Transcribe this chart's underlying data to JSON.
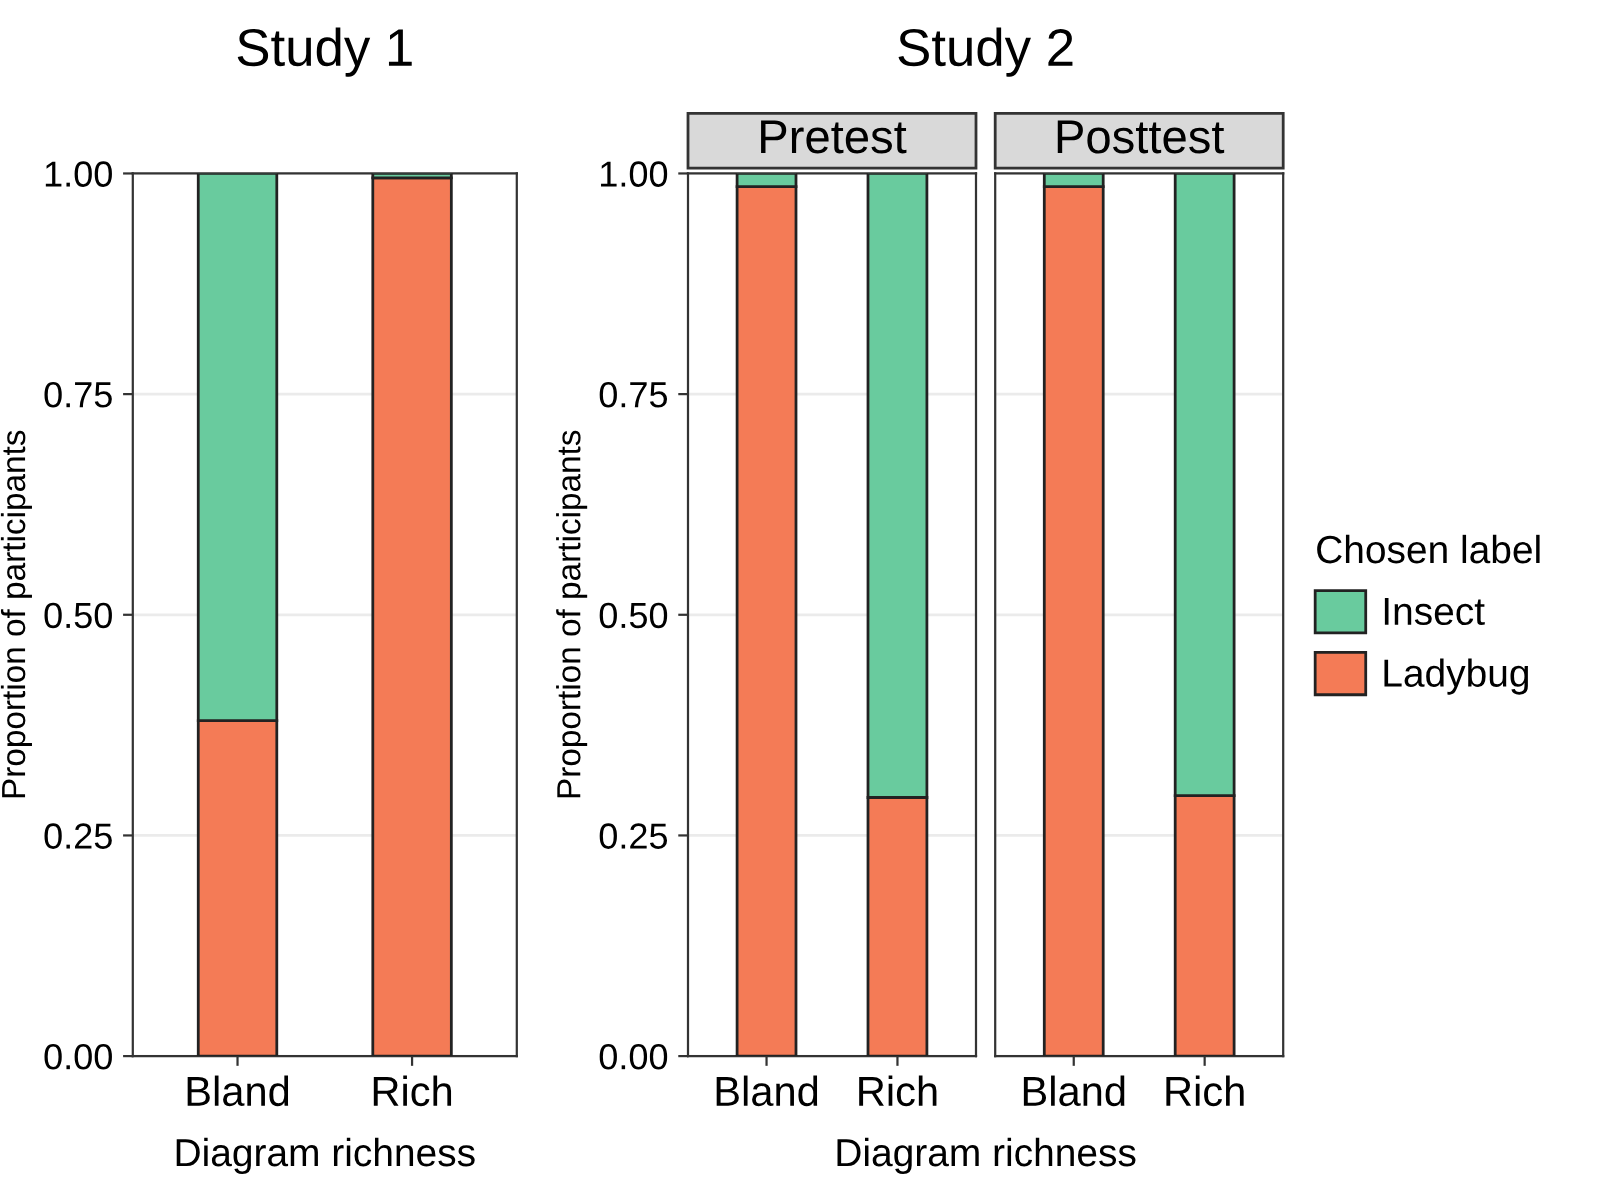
{
  "chart_data": [
    {
      "type": "bar",
      "stacked": true,
      "title": "Study 1",
      "xlabel": "Diagram richness",
      "ylabel": "Proportion of participants",
      "categories": [
        "Bland",
        "Rich"
      ],
      "ylim": [
        0,
        1
      ],
      "yticks": [
        {
          "value": 0,
          "label": "0.00"
        },
        {
          "value": 0.25,
          "label": "0.25"
        },
        {
          "value": 0.5,
          "label": "0.50"
        },
        {
          "value": 0.75,
          "label": "0.75"
        },
        {
          "value": 1,
          "label": "1.00"
        }
      ],
      "grid": "y",
      "series": [
        {
          "color": "#f47b56",
          "values": [
            0.38,
            0.995
          ]
        },
        {
          "color": "#69cb9e",
          "values": [
            0.62,
            0.005
          ]
        }
      ]
    },
    {
      "type": "bar",
      "stacked": true,
      "title": "Study 2",
      "subtitle": "Pretest",
      "xlabel": "Diagram richness",
      "ylabel": "Proportion of participants",
      "categories": [
        "Bland",
        "Rich"
      ],
      "ylim": [
        0,
        1
      ],
      "yticks": [
        {
          "value": 0,
          "label": "0.00"
        },
        {
          "value": 0.25,
          "label": "0.25"
        },
        {
          "value": 0.5,
          "label": "0.50"
        },
        {
          "value": 0.75,
          "label": "0.75"
        },
        {
          "value": 1,
          "label": "1.00"
        }
      ],
      "grid": "y",
      "series": [
        {
          "color": "#f47b56",
          "values": [
            0.985,
            0.293
          ]
        },
        {
          "color": "#69cb9e",
          "values": [
            0.015,
            0.707
          ]
        }
      ]
    },
    {
      "type": "bar",
      "stacked": true,
      "subtitle": "Posttest",
      "categories": [
        "Bland",
        "Rich"
      ],
      "ylim": [
        0,
        1
      ],
      "yticks": [
        {
          "value": 0,
          "label": null
        },
        {
          "value": 0.25,
          "label": null
        },
        {
          "value": 0.5,
          "label": null
        },
        {
          "value": 0.75,
          "label": null
        },
        {
          "value": 1,
          "label": null
        }
      ],
      "grid": "y",
      "tick_labels": "x",
      "legend": "right",
      "legend_title": "Chosen label",
      "series": [
        {
          "name": "Ladybug",
          "color": "#f47b56",
          "values": [
            0.985,
            0.295
          ]
        },
        {
          "name": "Insect",
          "color": "#69cb9e",
          "values": [
            0.015,
            0.705
          ]
        }
      ]
    }
  ]
}
